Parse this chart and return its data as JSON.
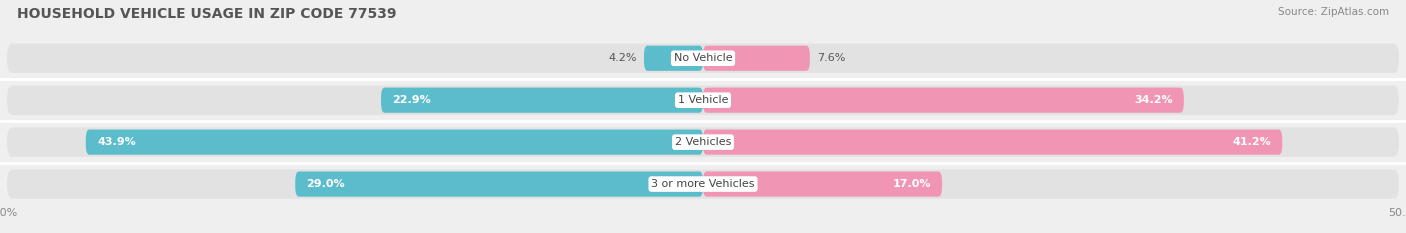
{
  "title": "HOUSEHOLD VEHICLE USAGE IN ZIP CODE 77539",
  "source": "Source: ZipAtlas.com",
  "categories": [
    "No Vehicle",
    "1 Vehicle",
    "2 Vehicles",
    "3 or more Vehicles"
  ],
  "owner_values": [
    4.2,
    22.9,
    43.9,
    29.0
  ],
  "renter_values": [
    7.6,
    34.2,
    41.2,
    17.0
  ],
  "owner_color": "#5bbccc",
  "renter_color": "#f096b4",
  "bg_color": "#efefef",
  "row_bg_color": "#e2e2e2",
  "row_bg_color2": "#e8e8e8",
  "xlim": 50.0,
  "title_fontsize": 10,
  "label_fontsize": 8,
  "tick_fontsize": 8,
  "source_fontsize": 7.5,
  "bar_height": 0.7,
  "n_rows": 4
}
